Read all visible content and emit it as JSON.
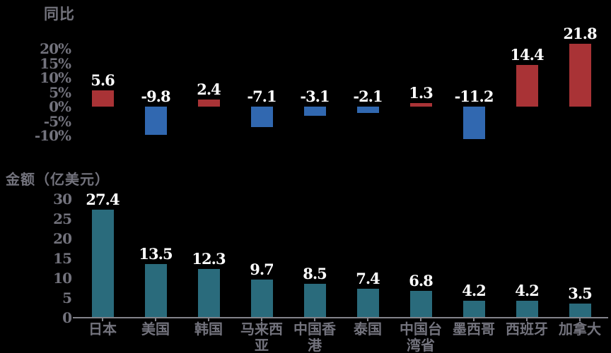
{
  "colors": {
    "background": "#000000",
    "positive_bar": "#a93336",
    "negative_bar": "#3168b0",
    "amount_bar": "#2a6b7c",
    "axis_text": "#73737d",
    "axis_line": "#83838b",
    "value_label_fill": "#ffffff",
    "value_label_outline": "#000000"
  },
  "chart_data": [
    {
      "type": "bar",
      "title": "同比",
      "categories": [
        "日本",
        "美国",
        "韩国",
        "马来西亚",
        "中国香港",
        "泰国",
        "中国台湾省",
        "墨西哥",
        "西班牙",
        "加拿大"
      ],
      "values": [
        5.6,
        -9.8,
        2.4,
        -7.1,
        -3.1,
        -2.1,
        1.3,
        -11.2,
        14.4,
        21.8
      ],
      "value_labels": [
        "5.6",
        "-9.8",
        "2.4",
        "-7.1",
        "-3.1",
        "-2.1",
        "1.3",
        "-11.2",
        "14.4",
        "21.8"
      ],
      "ytick_labels": [
        "20%",
        "15%",
        "10%",
        "5%",
        "0%",
        "-5%",
        "-10%"
      ],
      "ytick_values": [
        20,
        15,
        10,
        5,
        0,
        -5,
        -10
      ],
      "ylim": [
        -12.5,
        22.5
      ],
      "grid": false,
      "legend": "none",
      "color_rule": "positive values red, negative values blue",
      "x_axis_labels_shown": false
    },
    {
      "type": "bar",
      "title": "金额（亿美元）",
      "categories": [
        "日本",
        "美国",
        "韩国",
        "马来西亚",
        "中国香港",
        "泰国",
        "中国台湾省",
        "墨西哥",
        "西班牙",
        "加拿大"
      ],
      "values": [
        27.4,
        13.5,
        12.3,
        9.7,
        8.5,
        7.4,
        6.8,
        4.2,
        4.2,
        3.5
      ],
      "value_labels": [
        "27.4",
        "13.5",
        "12.3",
        "9.7",
        "8.5",
        "7.4",
        "6.8",
        "4.2",
        "4.2",
        "3.5"
      ],
      "ytick_labels": [
        "0",
        "5",
        "10",
        "15",
        "20",
        "25",
        "30"
      ],
      "ytick_values": [
        0,
        5,
        10,
        15,
        20,
        25,
        30
      ],
      "ylim": [
        0,
        30
      ],
      "grid": false,
      "legend": "none",
      "x_axis_labels_shown": true
    }
  ]
}
